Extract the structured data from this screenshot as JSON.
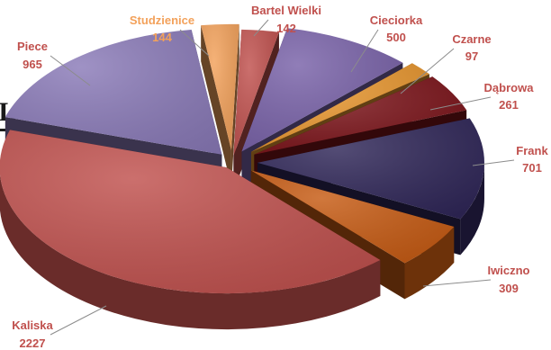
{
  "fragment_text": "I:",
  "chart_data": {
    "type": "pie",
    "style": "3d-exploded",
    "title": "",
    "slices": [
      {
        "label": "Bartel Wielki",
        "value": 142,
        "color": "#c0504d"
      },
      {
        "label": "Cieciorka",
        "value": 500,
        "color": "#7861a8"
      },
      {
        "label": "Czarne",
        "value": 97,
        "color": "#e8962e"
      },
      {
        "label": "Dąbrowa",
        "value": 261,
        "color": "#7a1218"
      },
      {
        "label": "Frank",
        "value": 701,
        "color": "#2e2557"
      },
      {
        "label": "Iwiczno",
        "value": 309,
        "color": "#c65a12"
      },
      {
        "label": "Kaliska",
        "value": 2227,
        "color": "#c0504d"
      },
      {
        "label": "Piece",
        "value": 965,
        "color": "#8a7ab8"
      },
      {
        "label": "Studzienice",
        "value": 144,
        "color": "#f3a15a"
      }
    ],
    "label_colors": {
      "Bartel Wielki": "#c0504d",
      "Cieciorka": "#c0504d",
      "Czarne": "#c0504d",
      "Dąbrowa": "#c0504d",
      "Frank": "#c0504d",
      "Iwiczno": "#c0504d",
      "Kaliska": "#c0504d",
      "Piece": "#c0504d",
      "Studzienice": "#f3a15a"
    },
    "legend": "none",
    "data_labels": "name and value"
  }
}
